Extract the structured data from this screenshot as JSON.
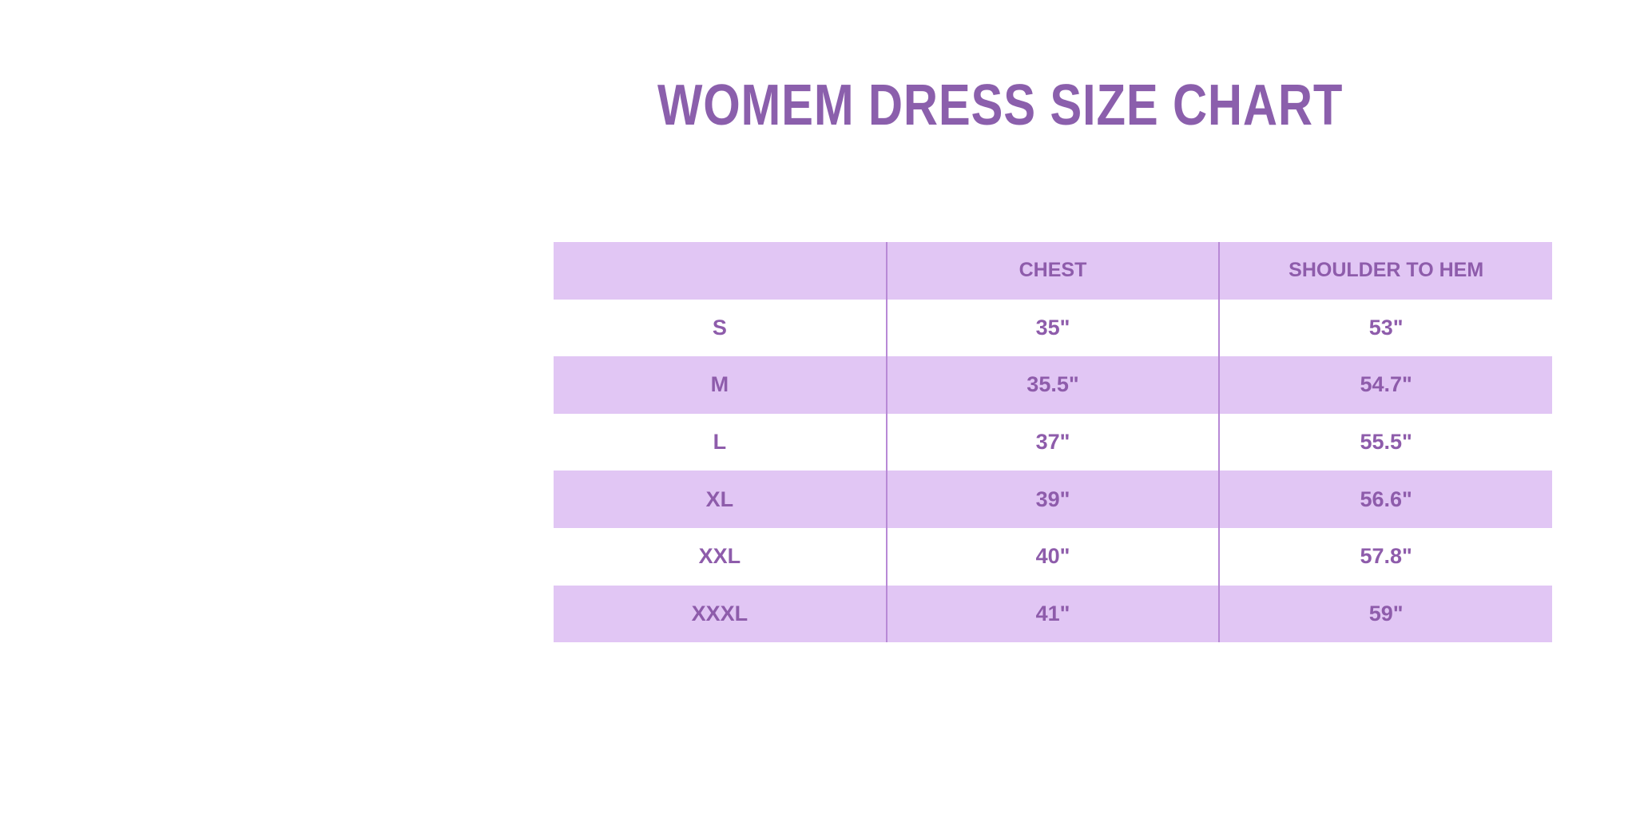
{
  "title": "WOMEM DRESS SIZE CHART",
  "colors": {
    "accent": "#8b5fac",
    "row_shade": "#e1c6f4",
    "divider": "#b889d6"
  },
  "table": {
    "headers": [
      "",
      "CHEST",
      "SHOULDER TO HEM"
    ],
    "rows": [
      [
        "S",
        "35\"",
        "53\""
      ],
      [
        "M",
        "35.5\"",
        "54.7\""
      ],
      [
        "L",
        "37\"",
        "55.5\""
      ],
      [
        "XL",
        "39\"",
        "56.6\""
      ],
      [
        "XXL",
        "40\"",
        "57.8\""
      ],
      [
        "XXXL",
        "41\"",
        "59\""
      ]
    ]
  }
}
